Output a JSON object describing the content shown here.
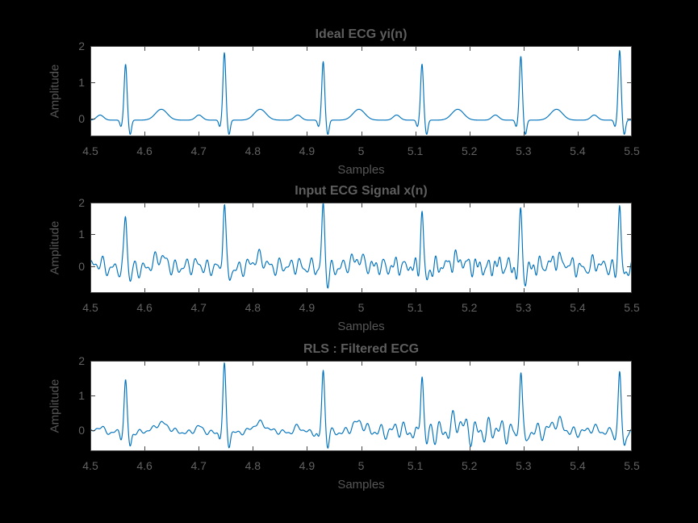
{
  "figure": {
    "background_color": "#000000",
    "axes_background": "#ffffff",
    "axis_color": "#454545",
    "tick_text_color": "#626262",
    "label_text_color": "#565656",
    "line_color": "#0072BD"
  },
  "chart_data": [
    {
      "type": "line",
      "title": "Ideal ECG yi(n)",
      "xlabel": "Samples",
      "ylabel": "Amplitude",
      "xlim": [
        4.5,
        5.5
      ],
      "ylim": [
        -0.5,
        2
      ],
      "xticks": [
        4.5,
        4.6,
        4.7,
        4.8,
        4.9,
        5.0,
        5.1,
        5.2,
        5.3,
        5.4,
        5.5
      ],
      "xtick_labels": [
        "4.5",
        "4.6",
        "4.7",
        "4.8",
        "4.9",
        "5",
        "5.1",
        "5.2",
        "5.3",
        "5.4",
        "5.5"
      ],
      "yticks": [
        0,
        1,
        2
      ],
      "ytick_labels": [
        "0",
        "1",
        "2"
      ],
      "line_color": "#0072BD",
      "grid": false,
      "signal": {
        "kind": "ecg",
        "beat_times": [
          4.565,
          4.7475,
          4.93,
          5.1125,
          5.295,
          5.4775
        ],
        "r_amplitudes": [
          1.55,
          1.87,
          1.62,
          1.55,
          1.77,
          1.93
        ],
        "template": {
          "baseline": -0.05,
          "p_amp": 0.14,
          "p_off": -0.047,
          "p_w": 0.009,
          "q_amp": -0.18,
          "q_off": -0.0085,
          "q_w": 0.003,
          "r_w": 0.0036,
          "s_amp": -0.4,
          "s_off": 0.0085,
          "s_w": 0.0035,
          "t_amp": 0.3,
          "t_off": 0.066,
          "t_w": 0.0155
        },
        "noise": {
          "components": [],
          "bursts": []
        }
      }
    },
    {
      "type": "line",
      "title": "Input ECG Signal x(n)",
      "xlabel": "Samples",
      "ylabel": "Amplitude",
      "xlim": [
        4.5,
        5.5
      ],
      "ylim": [
        -0.85,
        2
      ],
      "xticks": [
        4.5,
        4.6,
        4.7,
        4.8,
        4.9,
        5.0,
        5.1,
        5.2,
        5.3,
        5.4,
        5.5
      ],
      "xtick_labels": [
        "4.5",
        "4.6",
        "4.7",
        "4.8",
        "4.9",
        "5",
        "5.1",
        "5.2",
        "5.3",
        "5.4",
        "5.5"
      ],
      "yticks": [
        0,
        1,
        2
      ],
      "ytick_labels": [
        "0",
        "1",
        "2"
      ],
      "line_color": "#0072BD",
      "grid": false,
      "signal": {
        "kind": "ecg-plus-noise",
        "beat_times": [
          4.565,
          4.7475,
          4.93,
          5.1125,
          5.295,
          5.4775
        ],
        "r_amplitudes": [
          1.6,
          2.1,
          1.95,
          1.8,
          1.75,
          2.1
        ],
        "template": {
          "baseline": -0.05,
          "p_amp": 0.14,
          "p_off": -0.047,
          "p_w": 0.009,
          "q_amp": -0.18,
          "q_off": -0.0085,
          "q_w": 0.003,
          "r_w": 0.0036,
          "s_amp": -0.4,
          "s_off": 0.0085,
          "s_w": 0.0035,
          "t_amp": 0.3,
          "t_off": 0.066,
          "t_w": 0.0155
        },
        "noise": {
          "components": [
            [
              0.17,
              52,
              0.4
            ],
            [
              0.11,
              83,
              2.0
            ],
            [
              0.05,
              17,
              1.1
            ]
          ],
          "bursts": [
            {
              "amp": 0.1,
              "freq": 110,
              "phase": 0.8,
              "center": 0.72,
              "width": 0.22
            }
          ]
        }
      }
    },
    {
      "type": "line",
      "title": "RLS : Filtered ECG",
      "xlabel": "Samples",
      "ylabel": "Amplitude",
      "xlim": [
        4.5,
        5.5
      ],
      "ylim": [
        -0.6,
        2
      ],
      "xticks": [
        4.5,
        4.6,
        4.7,
        4.8,
        4.9,
        5.0,
        5.1,
        5.2,
        5.3,
        5.4,
        5.5
      ],
      "xtick_labels": [
        "4.5",
        "4.6",
        "4.7",
        "4.8",
        "4.9",
        "5",
        "5.1",
        "5.2",
        "5.3",
        "5.4",
        "5.5"
      ],
      "yticks": [
        0,
        1,
        2
      ],
      "ytick_labels": [
        "0",
        "1",
        "2"
      ],
      "line_color": "#0072BD",
      "grid": false,
      "signal": {
        "kind": "ecg-plus-residual-noise",
        "beat_times": [
          4.565,
          4.7475,
          4.93,
          5.1125,
          5.295,
          5.4775
        ],
        "r_amplitudes": [
          1.45,
          1.9,
          1.75,
          1.85,
          1.95,
          1.75
        ],
        "template": {
          "baseline": -0.05,
          "p_amp": 0.14,
          "p_off": -0.047,
          "p_w": 0.009,
          "q_amp": -0.18,
          "q_off": -0.0085,
          "q_w": 0.003,
          "r_w": 0.0036,
          "s_amp": -0.4,
          "s_off": 0.0085,
          "s_w": 0.0035,
          "t_amp": 0.28,
          "t_off": 0.066,
          "t_w": 0.0155
        },
        "noise": {
          "components": [
            [
              0.045,
              45,
              0.9
            ],
            [
              0.035,
              76,
              2.3
            ],
            [
              0.02,
              21,
              0.3
            ]
          ],
          "bursts": [
            {
              "amp": 0.19,
              "freq": 45,
              "phase": 0.9,
              "center": 0.7,
              "width": 0.17
            },
            {
              "amp": 0.15,
              "freq": 76,
              "phase": 2.3,
              "center": 0.7,
              "width": 0.17
            }
          ]
        }
      }
    }
  ]
}
